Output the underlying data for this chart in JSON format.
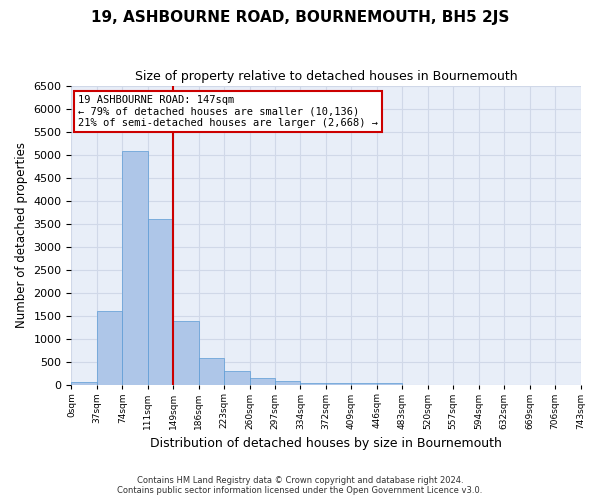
{
  "title": "19, ASHBOURNE ROAD, BOURNEMOUTH, BH5 2JS",
  "subtitle": "Size of property relative to detached houses in Bournemouth",
  "xlabel": "Distribution of detached houses by size in Bournemouth",
  "ylabel": "Number of detached properties",
  "footer_line1": "Contains HM Land Registry data © Crown copyright and database right 2024.",
  "footer_line2": "Contains public sector information licensed under the Open Government Licence v3.0.",
  "bin_labels": [
    "0sqm",
    "37sqm",
    "74sqm",
    "111sqm",
    "149sqm",
    "186sqm",
    "223sqm",
    "260sqm",
    "297sqm",
    "334sqm",
    "372sqm",
    "409sqm",
    "446sqm",
    "483sqm",
    "520sqm",
    "557sqm",
    "594sqm",
    "632sqm",
    "669sqm",
    "706sqm",
    "743sqm"
  ],
  "bar_values": [
    75,
    1620,
    5080,
    3600,
    1400,
    600,
    310,
    150,
    90,
    55,
    55,
    55,
    55,
    0,
    0,
    0,
    0,
    0,
    0,
    0
  ],
  "bar_color": "#aec6e8",
  "bar_edge_color": "#5b9bd5",
  "grid_color": "#d0d8e8",
  "background_color": "#e8eef8",
  "annotation_box_color": "#cc0000",
  "property_line_x": 4,
  "annotation_title": "19 ASHBOURNE ROAD: 147sqm",
  "annotation_line1": "← 79% of detached houses are smaller (10,136)",
  "annotation_line2": "21% of semi-detached houses are larger (2,668) →",
  "ylim": [
    0,
    6500
  ],
  "yticks": [
    0,
    500,
    1000,
    1500,
    2000,
    2500,
    3000,
    3500,
    4000,
    4500,
    5000,
    5500,
    6000,
    6500
  ]
}
